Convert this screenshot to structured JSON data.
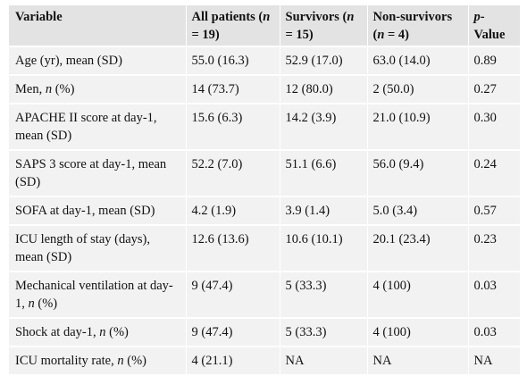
{
  "table": {
    "headers": [
      {
        "pre": "Variable",
        "it": "",
        "post": ""
      },
      {
        "pre": "All patients (",
        "it": "n",
        "post": " = 19)"
      },
      {
        "pre": "Survivors (",
        "it": "n",
        "post": " = 15)"
      },
      {
        "pre": "Non-survivors (",
        "it": "n",
        "post": " = 4)"
      },
      {
        "pre": "",
        "it": "p",
        "post": "-Value"
      }
    ],
    "rows": [
      {
        "label": {
          "pre": "Age (yr), mean (SD)",
          "it": "",
          "post": ""
        },
        "cells": [
          "55.0 (16.3)",
          "52.9 (17.0)",
          "63.0 (14.0)",
          "0.89"
        ]
      },
      {
        "label": {
          "pre": "Men, ",
          "it": "n",
          "post": " (%)"
        },
        "cells": [
          "14 (73.7)",
          "12 (80.0)",
          "2 (50.0)",
          "0.27"
        ]
      },
      {
        "label": {
          "pre": "APACHE II score at day-1, mean (SD)",
          "it": "",
          "post": ""
        },
        "cells": [
          "15.6 (6.3)",
          "14.2 (3.9)",
          "21.0 (10.9)",
          "0.30"
        ]
      },
      {
        "label": {
          "pre": "SAPS 3 score at day-1, mean (SD)",
          "it": "",
          "post": ""
        },
        "cells": [
          "52.2 (7.0)",
          "51.1 (6.6)",
          "56.0 (9.4)",
          "0.24"
        ]
      },
      {
        "label": {
          "pre": "SOFA at day-1, mean (SD)",
          "it": "",
          "post": ""
        },
        "cells": [
          "4.2 (1.9)",
          "3.9 (1.4)",
          "5.0 (3.4)",
          "0.57"
        ]
      },
      {
        "label": {
          "pre": "ICU length of stay (days), mean (SD)",
          "it": "",
          "post": ""
        },
        "cells": [
          "12.6 (13.6)",
          "10.6 (10.1)",
          "20.1 (23.4)",
          "0.23"
        ]
      },
      {
        "label": {
          "pre": "Mechanical ventilation at day-1, ",
          "it": "n",
          "post": " (%)"
        },
        "cells": [
          "9 (47.4)",
          "5 (33.3)",
          "4 (100)",
          "0.03"
        ]
      },
      {
        "label": {
          "pre": "Shock at day-1, ",
          "it": "n",
          "post": " (%)"
        },
        "cells": [
          "9 (47.4)",
          "5 (33.3)",
          "4 (100)",
          "0.03"
        ]
      },
      {
        "label": {
          "pre": "ICU mortality rate, ",
          "it": "n",
          "post": " (%)"
        },
        "cells": [
          "4 (21.1)",
          "NA",
          "NA",
          "NA"
        ]
      }
    ]
  }
}
